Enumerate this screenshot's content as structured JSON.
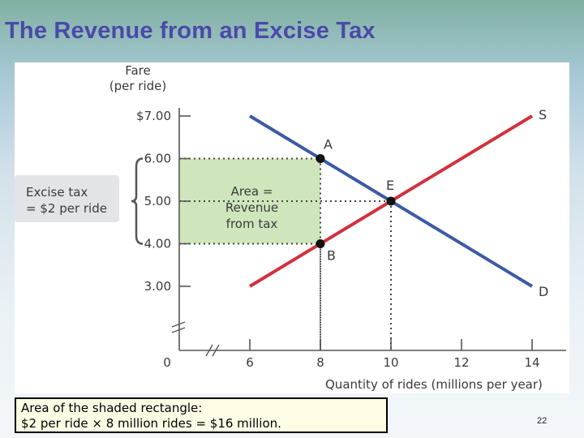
{
  "slide": {
    "title": "The Revenue from an Excise Tax",
    "caption_line1": "Area of the shaded rectangle:",
    "caption_line2": "$2 per ride × 8 million rides = $16 million.",
    "page_number": "22"
  },
  "chart_data": {
    "type": "line",
    "title": "",
    "ylabel": "Fare\n(per ride)",
    "xlabel": "Quantity of rides (millions per year)",
    "xlim": [
      6,
      14
    ],
    "ylim": [
      3,
      7
    ],
    "x_ticks": [
      6,
      8,
      10,
      12,
      14
    ],
    "x_tick_labels": [
      "6",
      "8",
      "10",
      "12",
      "14"
    ],
    "x_zero_label": "0",
    "y_ticks": [
      3,
      4,
      5,
      6,
      7
    ],
    "y_tick_labels": [
      "3.00",
      "4.00",
      "5.00",
      "6.00",
      "$7.00"
    ],
    "axis_breaks": true,
    "series": [
      {
        "name": "S",
        "color": "#d2303d",
        "x": [
          6,
          14
        ],
        "y": [
          3,
          7
        ]
      },
      {
        "name": "D",
        "color": "#3c5aa6",
        "x": [
          6,
          14
        ],
        "y": [
          7,
          3
        ]
      }
    ],
    "points": [
      {
        "label": "A",
        "x": 8,
        "y": 6
      },
      {
        "label": "B",
        "x": 8,
        "y": 4
      },
      {
        "label": "E",
        "x": 10,
        "y": 5
      }
    ],
    "shaded_region": {
      "x": [
        0,
        8
      ],
      "y": [
        4,
        6
      ],
      "color": "#cfe6bc",
      "label": "Area =\nRevenue\nfrom tax"
    },
    "tax_bracket": {
      "y": [
        4,
        6
      ],
      "label": "Excise tax\n= $2 per ride",
      "color": "#e3e4e8"
    }
  }
}
